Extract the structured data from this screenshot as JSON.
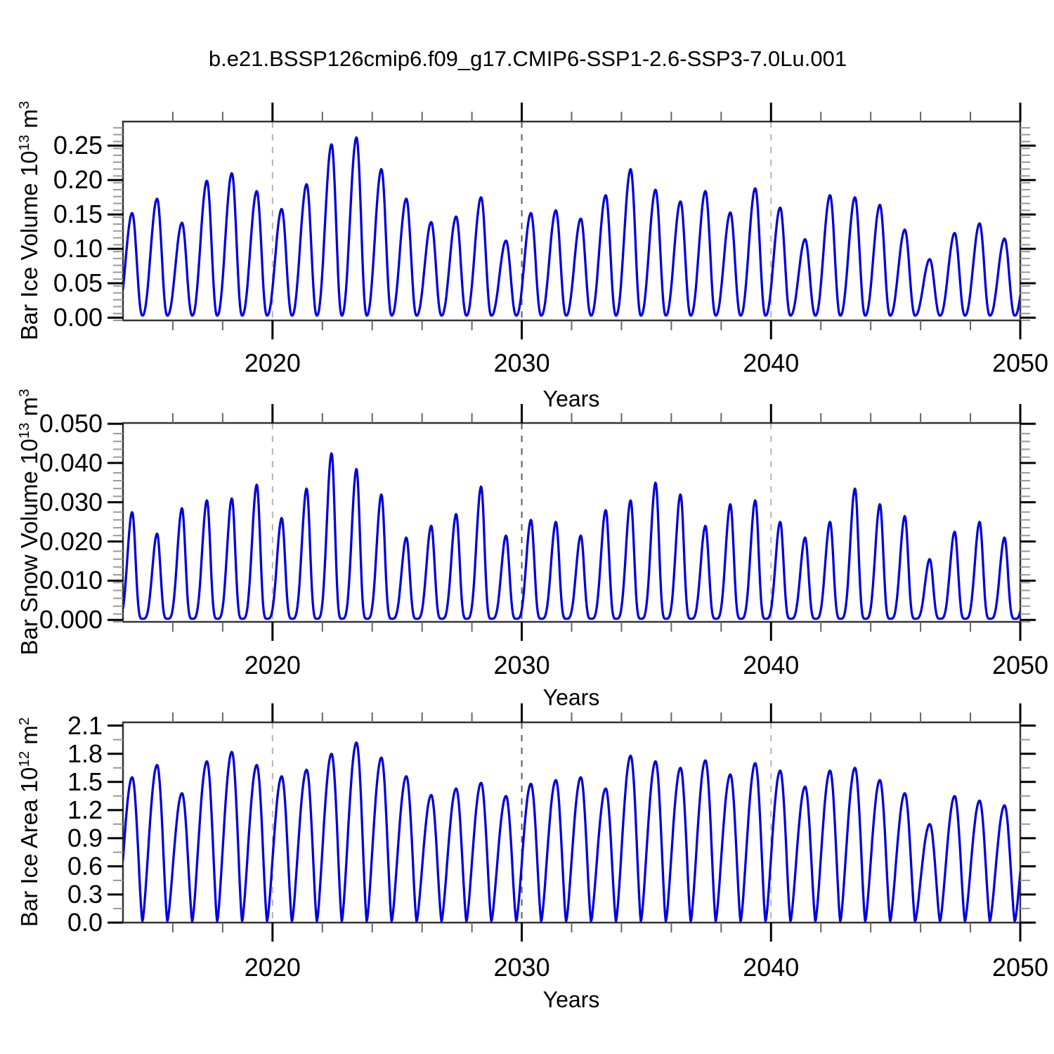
{
  "title": "b.e21.BSSP126cmip6.f09_g17.CMIP6-SSP1-2.6-SSP3-7.0Lu.001",
  "line_color": "#0000e0",
  "x_axis": {
    "label": "Years",
    "min": 2014,
    "max": 2050,
    "major_ticks": [
      2020,
      2030,
      2040,
      2050
    ],
    "major_tick_labels": [
      "2020",
      "2030",
      "2040",
      "2050"
    ],
    "minor_step": 2,
    "dashed_lines": [
      {
        "x": 2020,
        "color": "#b4b4b4"
      },
      {
        "x": 2030,
        "color": "#5a5a5a"
      },
      {
        "x": 2040,
        "color": "#b4b4b4"
      }
    ]
  },
  "chart_data": [
    {
      "type": "line",
      "name": "bar-ice-volume",
      "ylabel": "Bar Ice Volume 10^13 m^3",
      "ylabel_base": "Bar Ice Volume 10",
      "ylabel_exp": "13",
      "ylabel_unit": " m",
      "ylabel_unit_exp": "3",
      "xlabel": "Years",
      "xlim": [
        2014,
        2050
      ],
      "ylim": [
        -0.004,
        0.285
      ],
      "ytick_values": [
        0.0,
        0.05,
        0.1,
        0.15,
        0.2,
        0.25
      ],
      "ytick_labels": [
        "0.00",
        "0.05",
        "0.10",
        "0.15",
        "0.20",
        "0.25"
      ],
      "y_minor_step": 0.01,
      "grid": false,
      "legend": "none",
      "seasonality": {
        "peak_fraction_of_year": 0.37,
        "trough_fraction_of_year": 0.78,
        "trough_value": 0.003,
        "shape_power": 1.15
      },
      "peak_years_start": 2014,
      "annual_peaks": [
        0.152,
        0.173,
        0.138,
        0.199,
        0.21,
        0.184,
        0.158,
        0.194,
        0.252,
        0.262,
        0.216,
        0.173,
        0.139,
        0.147,
        0.175,
        0.112,
        0.152,
        0.156,
        0.144,
        0.178,
        0.216,
        0.186,
        0.169,
        0.184,
        0.153,
        0.188,
        0.16,
        0.114,
        0.178,
        0.175,
        0.164,
        0.128,
        0.085,
        0.123,
        0.137,
        0.115
      ]
    },
    {
      "type": "line",
      "name": "bar-snow-volume",
      "ylabel": "Bar Snow Volume 10^13 m^3",
      "ylabel_base": "Bar Snow Volume 10",
      "ylabel_exp": "13",
      "ylabel_unit": " m",
      "ylabel_unit_exp": "3",
      "xlabel": "Years",
      "xlim": [
        2014,
        2050
      ],
      "ylim": [
        -0.0005,
        0.0502
      ],
      "ytick_values": [
        0.0,
        0.01,
        0.02,
        0.03,
        0.04,
        0.05
      ],
      "ytick_labels": [
        "0.000",
        "0.010",
        "0.020",
        "0.030",
        "0.040",
        "0.050"
      ],
      "y_minor_step": 0.002,
      "grid": false,
      "legend": "none",
      "seasonality": {
        "peak_fraction_of_year": 0.37,
        "trough_fraction_of_year": 0.78,
        "trough_value": 0.0003,
        "shape_power": 2.0
      },
      "peak_years_start": 2014,
      "annual_peaks": [
        0.0275,
        0.022,
        0.0285,
        0.0305,
        0.031,
        0.0345,
        0.026,
        0.0335,
        0.0425,
        0.0385,
        0.032,
        0.021,
        0.024,
        0.027,
        0.034,
        0.0215,
        0.0255,
        0.025,
        0.0215,
        0.028,
        0.0305,
        0.035,
        0.032,
        0.024,
        0.0295,
        0.0305,
        0.025,
        0.021,
        0.025,
        0.0335,
        0.0295,
        0.0265,
        0.0155,
        0.0225,
        0.025,
        0.021
      ]
    },
    {
      "type": "line",
      "name": "bar-ice-area",
      "ylabel": "Bar Ice Area 10^12 m^2",
      "ylabel_base": "Bar Ice Area 10",
      "ylabel_exp": "12",
      "ylabel_unit": " m",
      "ylabel_unit_exp": "2",
      "xlabel": "Years",
      "xlim": [
        2014,
        2050
      ],
      "ylim": [
        0,
        2.135
      ],
      "ytick_values": [
        0.0,
        0.3,
        0.6,
        0.9,
        1.2,
        1.5,
        1.8,
        2.1
      ],
      "ytick_labels": [
        "0.0",
        "0.3",
        "0.6",
        "0.9",
        "1.2",
        "1.5",
        "1.8",
        "2.1"
      ],
      "y_minor_step": 0.15,
      "grid": false,
      "legend": "none",
      "seasonality": {
        "peak_fraction_of_year": 0.37,
        "trough_fraction_of_year": 0.78,
        "trough_value": 0.01,
        "shape_power": 0.72
      },
      "peak_years_start": 2014,
      "annual_peaks": [
        1.55,
        1.68,
        1.38,
        1.72,
        1.82,
        1.68,
        1.56,
        1.63,
        1.8,
        1.92,
        1.76,
        1.56,
        1.36,
        1.43,
        1.49,
        1.35,
        1.48,
        1.52,
        1.55,
        1.43,
        1.78,
        1.72,
        1.65,
        1.73,
        1.58,
        1.7,
        1.62,
        1.45,
        1.62,
        1.65,
        1.52,
        1.38,
        1.05,
        1.35,
        1.3,
        1.25
      ]
    }
  ]
}
